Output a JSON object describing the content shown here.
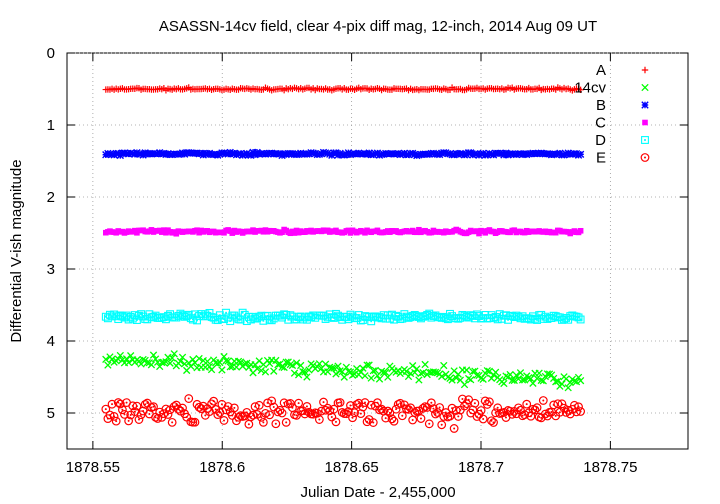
{
  "chart_data": {
    "type": "scatter",
    "title": "ASASSN-14cv field, clear 4-pix diff mag, 12-inch, 2014 Aug 09 UT",
    "xlabel": "Julian Date - 2,455,000",
    "ylabel": "Differential V-ish magnitude",
    "xlim": [
      1878.54,
      1878.78
    ],
    "ylim": [
      0,
      5.5
    ],
    "y_inverted": true,
    "x_ticks": [
      1878.55,
      1878.6,
      1878.65,
      1878.7,
      1878.75
    ],
    "x_tick_labels": [
      "1878.55",
      "1878.6",
      "1878.65",
      "1878.7",
      "1878.75"
    ],
    "y_ticks": [
      0,
      1,
      2,
      3,
      4,
      5
    ],
    "y_tick_labels": [
      "0",
      "1",
      "2",
      "3",
      "4",
      "5"
    ],
    "x_range_of_data": [
      1878.555,
      1878.7385
    ],
    "legend_position": "top-right",
    "series": [
      {
        "name": "A",
        "marker": "plus",
        "color": "#ff0000",
        "mean": 0.5,
        "trend": 0.0,
        "scatter": 0.008
      },
      {
        "name": "14cv",
        "marker": "cross",
        "color": "#00ff00",
        "start": 4.25,
        "end": 4.55,
        "scatter": 0.05
      },
      {
        "name": "B",
        "marker": "star",
        "color": "#0000ff",
        "mean": 1.4,
        "trend": 0.0,
        "scatter": 0.01
      },
      {
        "name": "C",
        "marker": "square-filled",
        "color": "#ff00ff",
        "mean": 2.48,
        "trend": 0.0,
        "scatter": 0.012
      },
      {
        "name": "D",
        "marker": "square-open",
        "color": "#00ffff",
        "mean": 3.67,
        "trend": 0.0,
        "scatter": 0.025
      },
      {
        "name": "E",
        "marker": "circle-open",
        "color": "#ff0000",
        "mean": 4.98,
        "trend": 0.0,
        "scatter": 0.09
      }
    ]
  }
}
